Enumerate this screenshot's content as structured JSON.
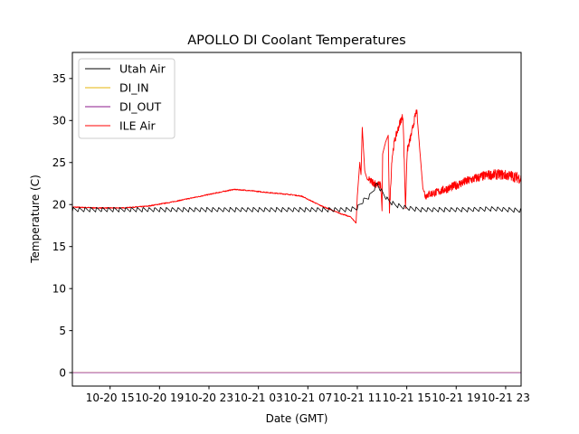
{
  "chart_data": {
    "type": "line",
    "title": "APOLLO DI Coolant Temperatures",
    "xlabel": "Date (GMT)",
    "ylabel": "Temperature (C)",
    "x_unit": "hours since 10-20 00:00 GMT",
    "xlim": [
      11.95,
      48.25
    ],
    "ylim": [
      -1.6,
      38.1
    ],
    "yticks": [
      0,
      5,
      10,
      15,
      20,
      25,
      30,
      35
    ],
    "xticks": [
      {
        "value": 15,
        "label": "10-20 15"
      },
      {
        "value": 19,
        "label": "10-20 19"
      },
      {
        "value": 23,
        "label": "10-20 23"
      },
      {
        "value": 27,
        "label": "10-21 03"
      },
      {
        "value": 31,
        "label": "10-21 07"
      },
      {
        "value": 35,
        "label": "10-21 11"
      },
      {
        "value": 39,
        "label": "10-21 15"
      },
      {
        "value": 43,
        "label": "10-21 19"
      },
      {
        "value": 47,
        "label": "10-21 23"
      }
    ],
    "grid": false,
    "legend_position": "top-left",
    "series": [
      {
        "name": "Utah Air",
        "color": "#000000",
        "description": "sawtooth ~19.5 C with ~0.5 C oscillation, bump to ~22.5 near 10-21 12:45",
        "x": [
          11.95,
          16,
          20,
          24,
          28,
          32,
          34.3,
          35.0,
          35.5,
          36.0,
          36.6,
          37.0,
          37.5,
          38.0,
          39.0,
          40.0,
          42,
          44,
          46,
          48.25
        ],
        "y": [
          19.4,
          19.4,
          19.4,
          19.4,
          19.4,
          19.4,
          19.4,
          19.6,
          20.5,
          21.0,
          22.5,
          21.5,
          20.5,
          20.0,
          19.6,
          19.4,
          19.4,
          19.4,
          19.5,
          19.3
        ]
      },
      {
        "name": "DI_IN",
        "color": "#e5b50a",
        "description": "flat at 0 (hidden beneath DI_OUT)",
        "x": [
          11.95,
          48.25
        ],
        "y": [
          0,
          0
        ]
      },
      {
        "name": "DI_OUT",
        "color": "#8b1a8b",
        "x": [
          11.95,
          48.25
        ],
        "y": [
          0,
          0
        ]
      },
      {
        "name": "ILE Air",
        "color": "#ff0000",
        "x": [
          11.95,
          14,
          16,
          18,
          20,
          22,
          24,
          25,
          26,
          28,
          29.5,
          30.5,
          32,
          33.5,
          34.5,
          34.6,
          34.9,
          35.0,
          35.2,
          35.3,
          35.4,
          35.6,
          35.8,
          36.2,
          36.6,
          36.9,
          37.0,
          37.05,
          37.3,
          37.5,
          37.6,
          37.8,
          38.0,
          38.5,
          38.7,
          38.9,
          39.0,
          39.05,
          39.4,
          39.6,
          39.8,
          40.3,
          40.5,
          40.7,
          41.0,
          41.5,
          42.5,
          43.5,
          44.5,
          45.5,
          46.5,
          47.5,
          48.25
        ],
        "y": [
          19.7,
          19.6,
          19.6,
          19.8,
          20.3,
          20.9,
          21.5,
          21.8,
          21.7,
          21.4,
          21.2,
          21.0,
          19.9,
          19.0,
          18.5,
          18.3,
          17.8,
          21.0,
          25.0,
          23.5,
          29.2,
          24.0,
          23.0,
          22.7,
          22.4,
          22.3,
          19.3,
          26.0,
          27.5,
          28.2,
          19.0,
          25.5,
          27.5,
          30.0,
          30.5,
          19.5,
          25.0,
          26.5,
          28.5,
          30.0,
          31.2,
          22.0,
          21.0,
          21.2,
          21.3,
          21.5,
          22.0,
          22.6,
          23.1,
          23.5,
          23.6,
          23.4,
          23.1
        ]
      }
    ]
  }
}
